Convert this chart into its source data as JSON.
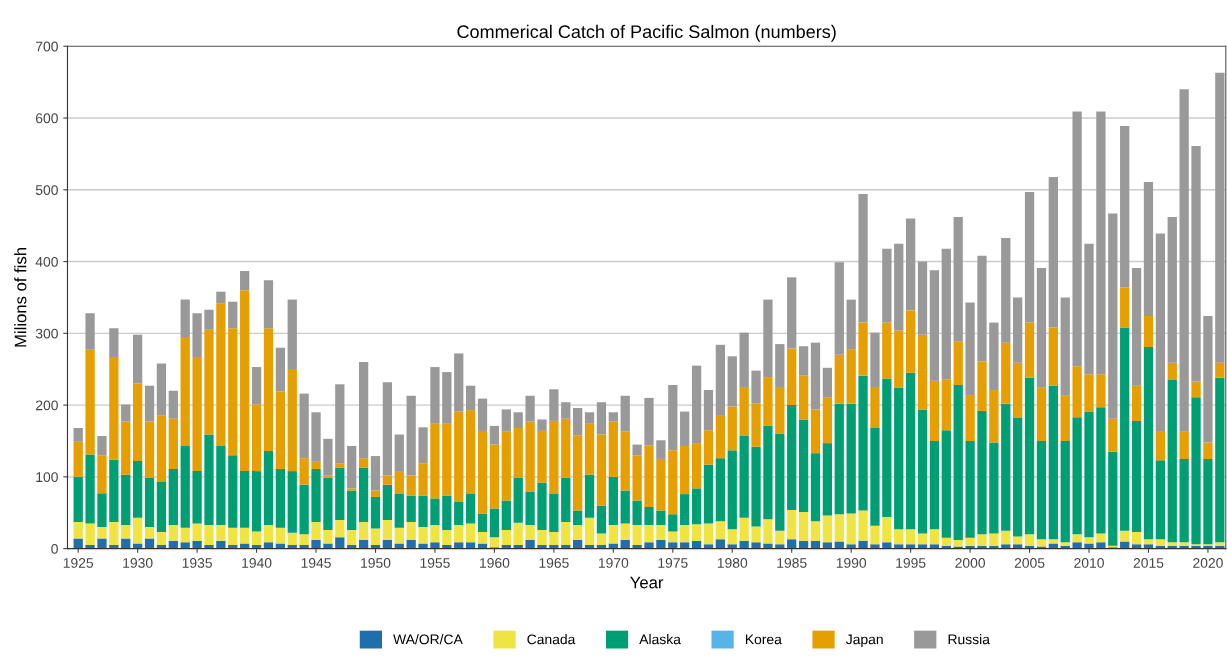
{
  "chart_data": {
    "type": "bar",
    "stacked": true,
    "title": "Commerical Catch of Pacific Salmon (numbers)",
    "xlabel": "Year",
    "ylabel": "Milions of fish",
    "x": [
      1925,
      1926,
      1927,
      1928,
      1929,
      1930,
      1931,
      1932,
      1933,
      1934,
      1935,
      1936,
      1937,
      1938,
      1939,
      1940,
      1941,
      1942,
      1943,
      1944,
      1945,
      1946,
      1947,
      1948,
      1949,
      1950,
      1951,
      1952,
      1953,
      1954,
      1955,
      1956,
      1957,
      1958,
      1959,
      1960,
      1961,
      1962,
      1963,
      1964,
      1965,
      1966,
      1967,
      1968,
      1969,
      1970,
      1971,
      1972,
      1973,
      1974,
      1975,
      1976,
      1977,
      1978,
      1979,
      1980,
      1981,
      1982,
      1983,
      1984,
      1985,
      1986,
      1987,
      1988,
      1989,
      1990,
      1991,
      1992,
      1993,
      1994,
      1995,
      1996,
      1997,
      1998,
      1999,
      2000,
      2001,
      2002,
      2003,
      2004,
      2005,
      2006,
      2007,
      2008,
      2009,
      2010,
      2011,
      2012,
      2013,
      2014,
      2015,
      2016,
      2017,
      2018,
      2019,
      2020,
      2021
    ],
    "series": [
      {
        "name": "WA/OR/CA",
        "color": "#1f6fad",
        "values": [
          14,
          5,
          14,
          5,
          14,
          7,
          14,
          5,
          11,
          9,
          11,
          5,
          11,
          5,
          7,
          5,
          9,
          7,
          5,
          5,
          12,
          7,
          16,
          5,
          12,
          5,
          12,
          7,
          12,
          7,
          9,
          5,
          9,
          9,
          7,
          2,
          5,
          5,
          12,
          5,
          5,
          5,
          12,
          5,
          5,
          7,
          12,
          5,
          9,
          12,
          9,
          9,
          11,
          6,
          13,
          6,
          11,
          9,
          7,
          6,
          13,
          11,
          11,
          9,
          10,
          6,
          11,
          6,
          9,
          6,
          6,
          6,
          6,
          4,
          3,
          4,
          4,
          4,
          6,
          6,
          4,
          3,
          7,
          4,
          9,
          7,
          9,
          2,
          10,
          6,
          6,
          4,
          4,
          4,
          4,
          4,
          4
        ]
      },
      {
        "name": "Canada",
        "color": "#f0e442",
        "values": [
          23,
          30,
          16,
          32,
          19,
          36,
          16,
          18,
          22,
          20,
          24,
          28,
          22,
          24,
          22,
          19,
          24,
          22,
          17,
          15,
          25,
          19,
          24,
          21,
          25,
          23,
          28,
          22,
          25,
          23,
          24,
          21,
          24,
          26,
          16,
          14,
          21,
          31,
          21,
          21,
          18,
          32,
          21,
          38,
          16,
          26,
          23,
          28,
          24,
          21,
          15,
          24,
          23,
          29,
          25,
          21,
          32,
          22,
          34,
          19,
          41,
          40,
          27,
          37,
          38,
          43,
          42,
          26,
          35,
          21,
          21,
          15,
          21,
          11,
          9,
          11,
          16,
          17,
          19,
          11,
          16,
          10,
          6,
          5,
          11,
          9,
          12,
          2,
          15,
          17,
          7,
          9,
          5,
          5,
          2,
          2,
          5
        ]
      },
      {
        "name": "Alaska",
        "color": "#009e73",
        "values": [
          63,
          96,
          47,
          87,
          70,
          79,
          69,
          70,
          78,
          114,
          73,
          126,
          110,
          101,
          79,
          84,
          103,
          82,
          86,
          69,
          74,
          73,
          73,
          55,
          76,
          44,
          49,
          48,
          37,
          44,
          37,
          48,
          32,
          42,
          26,
          40,
          41,
          63,
          46,
          66,
          54,
          62,
          20,
          60,
          39,
          67,
          46,
          34,
          25,
          20,
          24,
          43,
          50,
          82,
          88,
          110,
          114,
          111,
          130,
          135,
          146,
          129,
          95,
          101,
          154,
          153,
          188,
          136,
          193,
          197,
          218,
          173,
          123,
          150,
          216,
          135,
          172,
          127,
          177,
          165,
          218,
          137,
          214,
          141,
          163,
          175,
          176,
          131,
          283,
          155,
          268,
          110,
          226,
          116,
          205,
          119,
          229
        ]
      },
      {
        "name": "Korea",
        "color": "#56b4e9",
        "values": [
          0,
          0,
          0,
          0,
          0,
          0,
          0,
          0,
          0,
          0,
          0,
          0,
          0,
          0,
          0,
          0,
          0,
          0,
          0,
          0,
          0,
          0,
          0,
          0,
          0,
          0,
          0,
          0,
          0,
          0,
          0,
          0,
          0,
          0,
          0,
          0,
          0,
          0,
          0,
          0,
          0,
          0,
          0,
          0,
          0,
          0,
          0,
          0,
          0,
          0,
          0,
          0,
          0,
          0,
          0,
          0,
          0,
          0,
          0,
          0,
          0,
          0,
          0,
          0,
          0,
          0,
          0,
          0,
          0,
          0,
          0,
          0,
          0,
          0,
          0,
          0,
          0,
          0,
          0,
          0,
          0,
          0,
          0,
          0,
          0,
          0,
          0,
          0,
          0,
          0,
          0,
          0,
          0,
          0,
          0,
          0,
          0
        ]
      },
      {
        "name": "Japan",
        "color": "#e69f00",
        "values": [
          49,
          146,
          53,
          143,
          74,
          108,
          78,
          93,
          70,
          152,
          159,
          146,
          199,
          177,
          252,
          93,
          171,
          108,
          141,
          37,
          10,
          3,
          6,
          3,
          13,
          9,
          13,
          30,
          28,
          45,
          104,
          100,
          126,
          116,
          115,
          89,
          96,
          69,
          98,
          72,
          101,
          82,
          105,
          71,
          99,
          77,
          82,
          63,
          86,
          72,
          89,
          67,
          63,
          48,
          59,
          61,
          67,
          60,
          68,
          64,
          79,
          61,
          61,
          64,
          68,
          76,
          74,
          56,
          78,
          80,
          87,
          104,
          84,
          71,
          61,
          64,
          69,
          73,
          85,
          77,
          77,
          74,
          81,
          63,
          71,
          52,
          46,
          46,
          56,
          49,
          43,
          41,
          24,
          38,
          22,
          23,
          21
        ]
      },
      {
        "name": "Russia",
        "color": "#999999",
        "values": [
          19,
          51,
          27,
          40,
          24,
          68,
          50,
          72,
          39,
          52,
          61,
          28,
          16,
          37,
          27,
          52,
          67,
          61,
          98,
          90,
          69,
          51,
          110,
          59,
          134,
          48,
          130,
          52,
          111,
          50,
          79,
          72,
          81,
          34,
          45,
          26,
          31,
          22,
          36,
          16,
          44,
          23,
          38,
          16,
          45,
          13,
          50,
          15,
          66,
          26,
          91,
          48,
          108,
          56,
          99,
          70,
          77,
          46,
          108,
          61,
          99,
          41,
          93,
          41,
          129,
          69,
          179,
          77,
          103,
          121,
          128,
          102,
          154,
          182,
          173,
          129,
          147,
          94,
          146,
          91,
          182,
          167,
          210,
          137,
          355,
          182,
          366,
          286,
          225,
          164,
          187,
          275,
          203,
          477,
          328,
          176,
          404
        ]
      }
    ],
    "xlim": [
      1924.1,
      2021.5
    ],
    "xticks": [
      1925,
      1930,
      1935,
      1940,
      1945,
      1950,
      1955,
      1960,
      1965,
      1970,
      1975,
      1980,
      1985,
      1990,
      1995,
      2000,
      2005,
      2010,
      2015,
      2020
    ],
    "ylim": [
      0,
      700
    ],
    "yticks": [
      0,
      100,
      200,
      300,
      400,
      500,
      600,
      700
    ],
    "grid": "y",
    "legend": "bottom"
  }
}
